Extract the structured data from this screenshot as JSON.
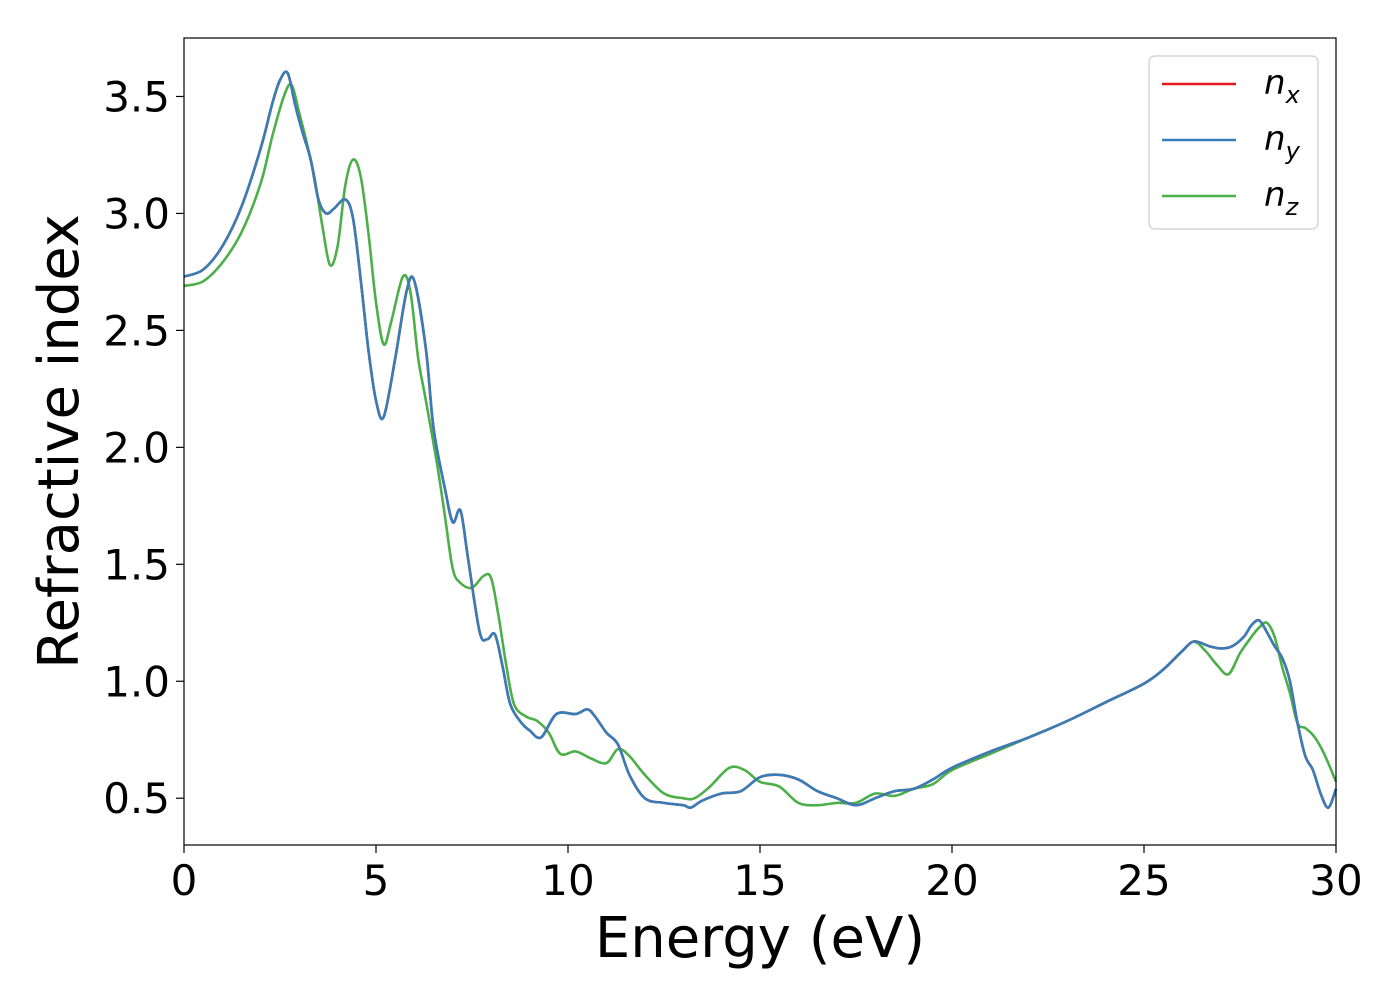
{
  "chart_data": {
    "type": "line",
    "title": "",
    "xlabel": "Energy (eV)",
    "ylabel": "Refractive index",
    "xlim": [
      0,
      30
    ],
    "ylim": [
      0.3,
      3.75
    ],
    "xticks": [
      0,
      5,
      10,
      15,
      20,
      25,
      30
    ],
    "yticks": [
      0.5,
      1.0,
      1.5,
      2.0,
      2.5,
      3.0,
      3.5
    ],
    "xtick_labels": [
      "0",
      "5",
      "10",
      "15",
      "20",
      "25",
      "30"
    ],
    "ytick_labels": [
      "0.5",
      "1.0",
      "1.5",
      "2.0",
      "2.5",
      "3.0",
      "3.5"
    ],
    "grid": false,
    "legend_position": "top-right",
    "series": [
      {
        "name": "n_x",
        "legend_base": "n",
        "legend_sub": "x",
        "color": "#e41a1c",
        "x": [
          0,
          0.5,
          1.0,
          1.5,
          2.0,
          2.3,
          2.5,
          2.7,
          2.9,
          3.1,
          3.3,
          3.5,
          3.7,
          3.9,
          4.2,
          4.4,
          4.6,
          4.8,
          5.0,
          5.2,
          5.5,
          5.8,
          6.0,
          6.3,
          6.5,
          6.8,
          7.0,
          7.2,
          7.4,
          7.7,
          7.9,
          8.1,
          8.3,
          8.5,
          8.8,
          9.0,
          9.3,
          9.7,
          10.2,
          10.5,
          10.7,
          11.0,
          11.3,
          11.6,
          12.0,
          12.5,
          13.0,
          13.2,
          13.5,
          14.0,
          14.5,
          15.0,
          15.5,
          16.0,
          16.5,
          17.0,
          17.5,
          18.0,
          18.5,
          19.0,
          19.5,
          20.0,
          21.0,
          22.0,
          23.0,
          24.0,
          25.0,
          25.5,
          26.0,
          26.3,
          26.7,
          27.0,
          27.3,
          27.6,
          27.8,
          28.0,
          28.2,
          28.4,
          28.6,
          28.8,
          29.0,
          29.2,
          29.4,
          29.6,
          29.8,
          30.0
        ],
        "y": [
          2.73,
          2.76,
          2.86,
          3.03,
          3.28,
          3.47,
          3.57,
          3.6,
          3.46,
          3.34,
          3.23,
          3.06,
          3.0,
          3.02,
          3.06,
          2.98,
          2.72,
          2.42,
          2.2,
          2.13,
          2.38,
          2.67,
          2.71,
          2.42,
          2.08,
          1.82,
          1.68,
          1.73,
          1.52,
          1.21,
          1.18,
          1.2,
          1.06,
          0.9,
          0.82,
          0.79,
          0.76,
          0.86,
          0.86,
          0.88,
          0.85,
          0.78,
          0.73,
          0.6,
          0.5,
          0.48,
          0.47,
          0.46,
          0.49,
          0.52,
          0.53,
          0.59,
          0.6,
          0.58,
          0.53,
          0.5,
          0.47,
          0.5,
          0.53,
          0.54,
          0.58,
          0.63,
          0.7,
          0.76,
          0.83,
          0.91,
          0.99,
          1.05,
          1.13,
          1.17,
          1.15,
          1.14,
          1.15,
          1.19,
          1.24,
          1.26,
          1.21,
          1.15,
          1.1,
          1.0,
          0.82,
          0.68,
          0.62,
          0.52,
          0.46,
          0.54
        ]
      },
      {
        "name": "n_y",
        "legend_base": "n",
        "legend_sub": "y",
        "color": "#377eb8",
        "x": [
          0,
          0.5,
          1.0,
          1.5,
          2.0,
          2.3,
          2.5,
          2.7,
          2.9,
          3.1,
          3.3,
          3.5,
          3.7,
          3.9,
          4.2,
          4.4,
          4.6,
          4.8,
          5.0,
          5.2,
          5.5,
          5.8,
          6.0,
          6.3,
          6.5,
          6.8,
          7.0,
          7.2,
          7.4,
          7.7,
          7.9,
          8.1,
          8.3,
          8.5,
          8.8,
          9.0,
          9.3,
          9.7,
          10.2,
          10.5,
          10.7,
          11.0,
          11.3,
          11.6,
          12.0,
          12.5,
          13.0,
          13.2,
          13.5,
          14.0,
          14.5,
          15.0,
          15.5,
          16.0,
          16.5,
          17.0,
          17.5,
          18.0,
          18.5,
          19.0,
          19.5,
          20.0,
          21.0,
          22.0,
          23.0,
          24.0,
          25.0,
          25.5,
          26.0,
          26.3,
          26.7,
          27.0,
          27.3,
          27.6,
          27.8,
          28.0,
          28.2,
          28.4,
          28.6,
          28.8,
          29.0,
          29.2,
          29.4,
          29.6,
          29.8,
          30.0
        ],
        "y": [
          2.73,
          2.76,
          2.86,
          3.03,
          3.28,
          3.47,
          3.57,
          3.6,
          3.46,
          3.34,
          3.23,
          3.06,
          3.0,
          3.02,
          3.06,
          2.98,
          2.72,
          2.42,
          2.2,
          2.13,
          2.38,
          2.67,
          2.71,
          2.42,
          2.08,
          1.82,
          1.68,
          1.73,
          1.52,
          1.21,
          1.18,
          1.2,
          1.06,
          0.9,
          0.82,
          0.79,
          0.76,
          0.86,
          0.86,
          0.88,
          0.85,
          0.78,
          0.73,
          0.6,
          0.5,
          0.48,
          0.47,
          0.46,
          0.49,
          0.52,
          0.53,
          0.59,
          0.6,
          0.58,
          0.53,
          0.5,
          0.47,
          0.5,
          0.53,
          0.54,
          0.58,
          0.63,
          0.7,
          0.76,
          0.83,
          0.91,
          0.99,
          1.05,
          1.13,
          1.17,
          1.15,
          1.14,
          1.15,
          1.19,
          1.24,
          1.26,
          1.21,
          1.15,
          1.1,
          1.0,
          0.82,
          0.68,
          0.62,
          0.52,
          0.46,
          0.54
        ]
      },
      {
        "name": "n_z",
        "legend_base": "n",
        "legend_sub": "z",
        "color": "#4daf4a",
        "x": [
          0,
          0.5,
          1.0,
          1.5,
          2.0,
          2.3,
          2.6,
          2.8,
          3.0,
          3.2,
          3.4,
          3.6,
          3.8,
          4.0,
          4.2,
          4.4,
          4.6,
          4.8,
          5.0,
          5.2,
          5.4,
          5.7,
          5.9,
          6.1,
          6.3,
          6.6,
          6.8,
          7.0,
          7.2,
          7.5,
          7.8,
          8.0,
          8.2,
          8.4,
          8.6,
          8.9,
          9.2,
          9.5,
          9.8,
          10.2,
          10.6,
          11.0,
          11.3,
          11.6,
          12.0,
          12.5,
          13.0,
          13.3,
          13.7,
          14.2,
          14.6,
          15.0,
          15.5,
          16.0,
          16.5,
          17.0,
          17.5,
          18.0,
          18.5,
          19.0,
          19.5,
          20.0,
          21.0,
          22.0,
          23.0,
          24.0,
          25.0,
          25.5,
          26.0,
          26.3,
          26.6,
          26.9,
          27.2,
          27.5,
          27.8,
          28.0,
          28.2,
          28.4,
          28.6,
          28.8,
          29.0,
          29.2,
          29.4,
          29.6,
          29.8,
          30.0
        ],
        "y": [
          2.69,
          2.71,
          2.79,
          2.92,
          3.13,
          3.33,
          3.5,
          3.55,
          3.43,
          3.3,
          3.15,
          2.95,
          2.78,
          2.86,
          3.12,
          3.23,
          3.16,
          2.92,
          2.62,
          2.44,
          2.54,
          2.73,
          2.66,
          2.38,
          2.2,
          1.92,
          1.7,
          1.48,
          1.42,
          1.4,
          1.45,
          1.44,
          1.27,
          1.06,
          0.9,
          0.85,
          0.83,
          0.78,
          0.69,
          0.7,
          0.67,
          0.65,
          0.71,
          0.68,
          0.6,
          0.52,
          0.5,
          0.5,
          0.55,
          0.63,
          0.62,
          0.57,
          0.55,
          0.48,
          0.47,
          0.48,
          0.48,
          0.52,
          0.51,
          0.54,
          0.56,
          0.62,
          0.69,
          0.76,
          0.83,
          0.91,
          0.99,
          1.05,
          1.13,
          1.17,
          1.13,
          1.07,
          1.03,
          1.12,
          1.19,
          1.23,
          1.25,
          1.19,
          1.06,
          0.95,
          0.82,
          0.8,
          0.77,
          0.72,
          0.65,
          0.57
        ]
      }
    ]
  }
}
